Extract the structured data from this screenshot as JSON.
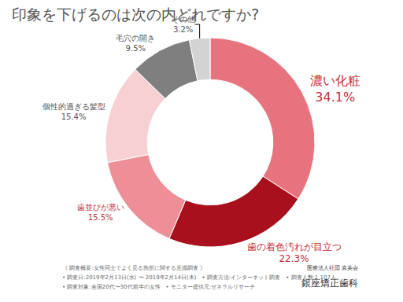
{
  "chart_data": {
    "type": "pie",
    "title": "印象を下げるのは次の内どれですか?",
    "categories": [
      "濃い化粧",
      "歯の着色汚れが目立つ",
      "歯並びが悪い",
      "個性的過ぎる髪型",
      "毛穴の開き",
      "その他"
    ],
    "values": [
      34.1,
      22.3,
      15.5,
      15.4,
      9.5,
      3.2
    ],
    "value_labels": [
      "34.1%",
      "22.3%",
      "15.5%",
      "15.4%",
      "9.5%",
      "3.2%"
    ],
    "colors": [
      "#e6737d",
      "#a8101e",
      "#ee8f98",
      "#f7d0d4",
      "#7f7f7f",
      "#d3d3d3"
    ],
    "data_labels": true,
    "annotations": {
      "notes": [
        "《 調査概要:女性同士でよく見る箇所に関する意識調査 》",
        "• 調査日:2019年2月13日(水) 〜 2019年2月14日(木)　• 調査方法:インターネット調査　• 調査人数:1,107人",
        "• 調査対象:全国20代〜30代前半の女性　• モニター提供元:ゼネラルリサーチ"
      ],
      "logo": [
        "医療法人社団 真美会",
        "銀座矯正歯科"
      ]
    }
  }
}
